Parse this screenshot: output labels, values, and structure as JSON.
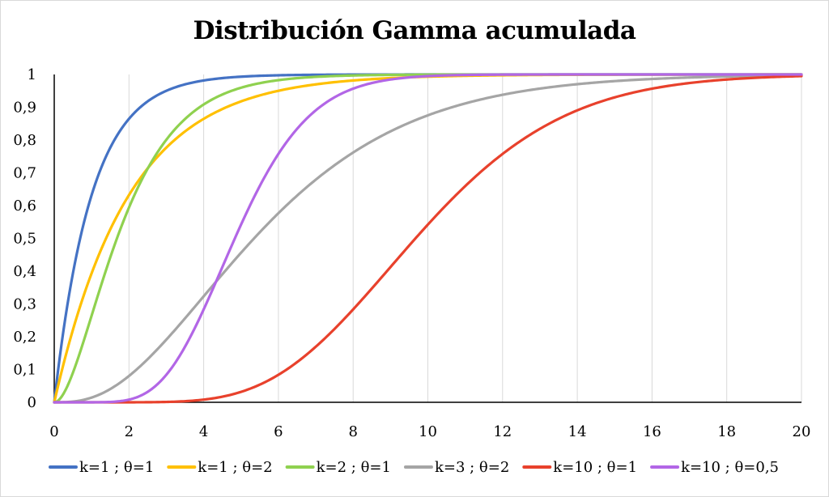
{
  "chart_data": {
    "type": "line",
    "title": "Distribución Gamma acumulada",
    "xlabel": "",
    "ylabel": "",
    "xlim": [
      0,
      20
    ],
    "ylim": [
      0,
      1
    ],
    "x_ticks": [
      "0",
      "2",
      "4",
      "6",
      "8",
      "10",
      "12",
      "14",
      "16",
      "18",
      "20"
    ],
    "y_ticks": [
      "0",
      "0,1",
      "0,2",
      "0,3",
      "0,4",
      "0,5",
      "0,6",
      "0,7",
      "0,8",
      "0,9",
      "1"
    ],
    "grid": "vertical",
    "legend_position": "bottom",
    "series": [
      {
        "name": "k=1 ; θ=1",
        "k": 1,
        "theta": 1,
        "color": "#4472c4",
        "x": [
          0,
          1,
          2,
          3,
          4,
          5,
          6,
          8,
          10,
          20
        ],
        "values": [
          0,
          0.63,
          0.86,
          0.95,
          0.98,
          0.99,
          1,
          1,
          1,
          1
        ]
      },
      {
        "name": "k=1 ; θ=2",
        "k": 1,
        "theta": 2,
        "color": "#ffc000",
        "x": [
          0,
          1,
          2,
          3,
          4,
          5,
          6,
          8,
          10,
          20
        ],
        "values": [
          0,
          0.39,
          0.63,
          0.78,
          0.86,
          0.92,
          0.95,
          0.98,
          0.99,
          1
        ]
      },
      {
        "name": "k=2 ; θ=1",
        "k": 2,
        "theta": 1,
        "color": "#8fd14f",
        "x": [
          0,
          1,
          2,
          3,
          4,
          5,
          6,
          8,
          10,
          20
        ],
        "values": [
          0,
          0.26,
          0.59,
          0.8,
          0.91,
          0.96,
          0.98,
          1,
          1,
          1
        ]
      },
      {
        "name": "k=3 ; θ=2",
        "k": 3,
        "theta": 2,
        "color": "#a5a5a5",
        "x": [
          0,
          2,
          4,
          6,
          8,
          10,
          12,
          14,
          16,
          20
        ],
        "values": [
          0,
          0.08,
          0.32,
          0.58,
          0.76,
          0.88,
          0.94,
          0.97,
          0.99,
          1
        ]
      },
      {
        "name": "k=10 ; θ=1",
        "k": 10,
        "theta": 1,
        "color": "#e8412c",
        "x": [
          0,
          4,
          6,
          8,
          10,
          12,
          14,
          16,
          18,
          20
        ],
        "values": [
          0,
          0.01,
          0.08,
          0.28,
          0.54,
          0.76,
          0.89,
          0.96,
          0.98,
          1
        ]
      },
      {
        "name": "k=10 ; θ=0,5",
        "k": 10,
        "theta": 0.5,
        "color": "#b266e6",
        "x": [
          0,
          2,
          3,
          4,
          5,
          6,
          7,
          8,
          10,
          20
        ],
        "values": [
          0,
          0,
          0.05,
          0.28,
          0.54,
          0.76,
          0.89,
          0.96,
          1,
          1
        ]
      }
    ]
  }
}
